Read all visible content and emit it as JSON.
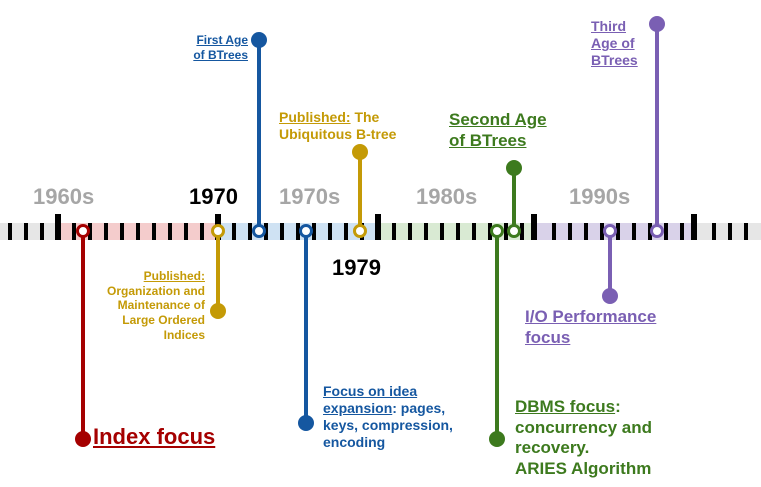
{
  "colors": {
    "red": "#a50000",
    "gold": "#c49a06",
    "blue": "#1557a0",
    "green": "#3d7a1e",
    "purple": "#7a5fb3",
    "decade_gray": "#a6a6a6",
    "band_red": "#f4cccc",
    "band_blue": "#cfe2f3",
    "band_green": "#d9ead3",
    "band_purple": "#d9d2e9",
    "band_gray": "#e6e6e6"
  },
  "timeline": {
    "decades": [
      "1960s",
      "1970s",
      "1980s",
      "1990s"
    ],
    "years": [
      "1970",
      "1979"
    ]
  },
  "events": {
    "index_focus": {
      "text": "Index focus"
    },
    "published_1970": {
      "head": "Published:",
      "lines": [
        "Organization and",
        "Maintenance of",
        "Large Ordered",
        "Indices"
      ]
    },
    "first_age": {
      "lines": [
        "First Age",
        "of BTrees"
      ]
    },
    "idea_expansion": {
      "head": "Focus on idea",
      "head2": "expansion",
      "rest": ": pages,",
      "lines": [
        "keys, compression,",
        "encoding"
      ]
    },
    "published_1979": {
      "head": "Published:",
      "rest": " The",
      "line2": "Ubiquitous B-tree"
    },
    "second_age": {
      "lines": [
        "Second Age",
        "of BTrees"
      ]
    },
    "dbms_focus": {
      "head": "DBMS focus",
      "rest": ":",
      "lines": [
        "concurrency and",
        "recovery.",
        "ARIES Algorithm"
      ]
    },
    "io_focus": {
      "lines": [
        "I/O Performance",
        "focus"
      ]
    },
    "third_age": {
      "lines": [
        "Third",
        "Age of",
        "BTrees"
      ]
    }
  }
}
